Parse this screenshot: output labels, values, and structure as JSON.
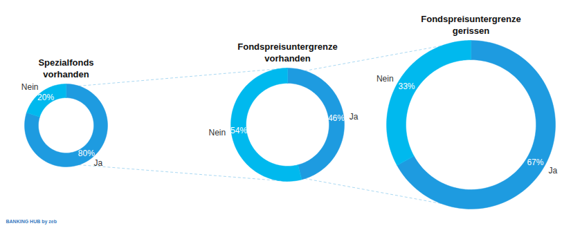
{
  "chart_data": [
    {
      "type": "pie",
      "title": "Spezialfonds\nvorhanden",
      "categories": [
        "Ja",
        "Nein"
      ],
      "values": [
        80,
        20
      ],
      "value_labels": [
        "80%",
        "20%"
      ],
      "colors": [
        "#1e9be0",
        "#00b9ee"
      ],
      "data_labels": true
    },
    {
      "type": "pie",
      "title": "Fondspreisuntergrenze\nvorhanden",
      "categories": [
        "Ja",
        "Nein"
      ],
      "values": [
        46,
        54
      ],
      "value_labels": [
        "46%",
        "54%"
      ],
      "colors": [
        "#1e9be0",
        "#00b9ee"
      ],
      "data_labels": true
    },
    {
      "type": "pie",
      "title": "Fondspreisuntergrenze\ngerissen",
      "categories": [
        "Ja",
        "Nein"
      ],
      "values": [
        67,
        33
      ],
      "value_labels": [
        "67%",
        "33%"
      ],
      "colors": [
        "#1e9be0",
        "#00b9ee"
      ],
      "data_labels": true
    }
  ],
  "source": "BANKING HUB by zeb"
}
